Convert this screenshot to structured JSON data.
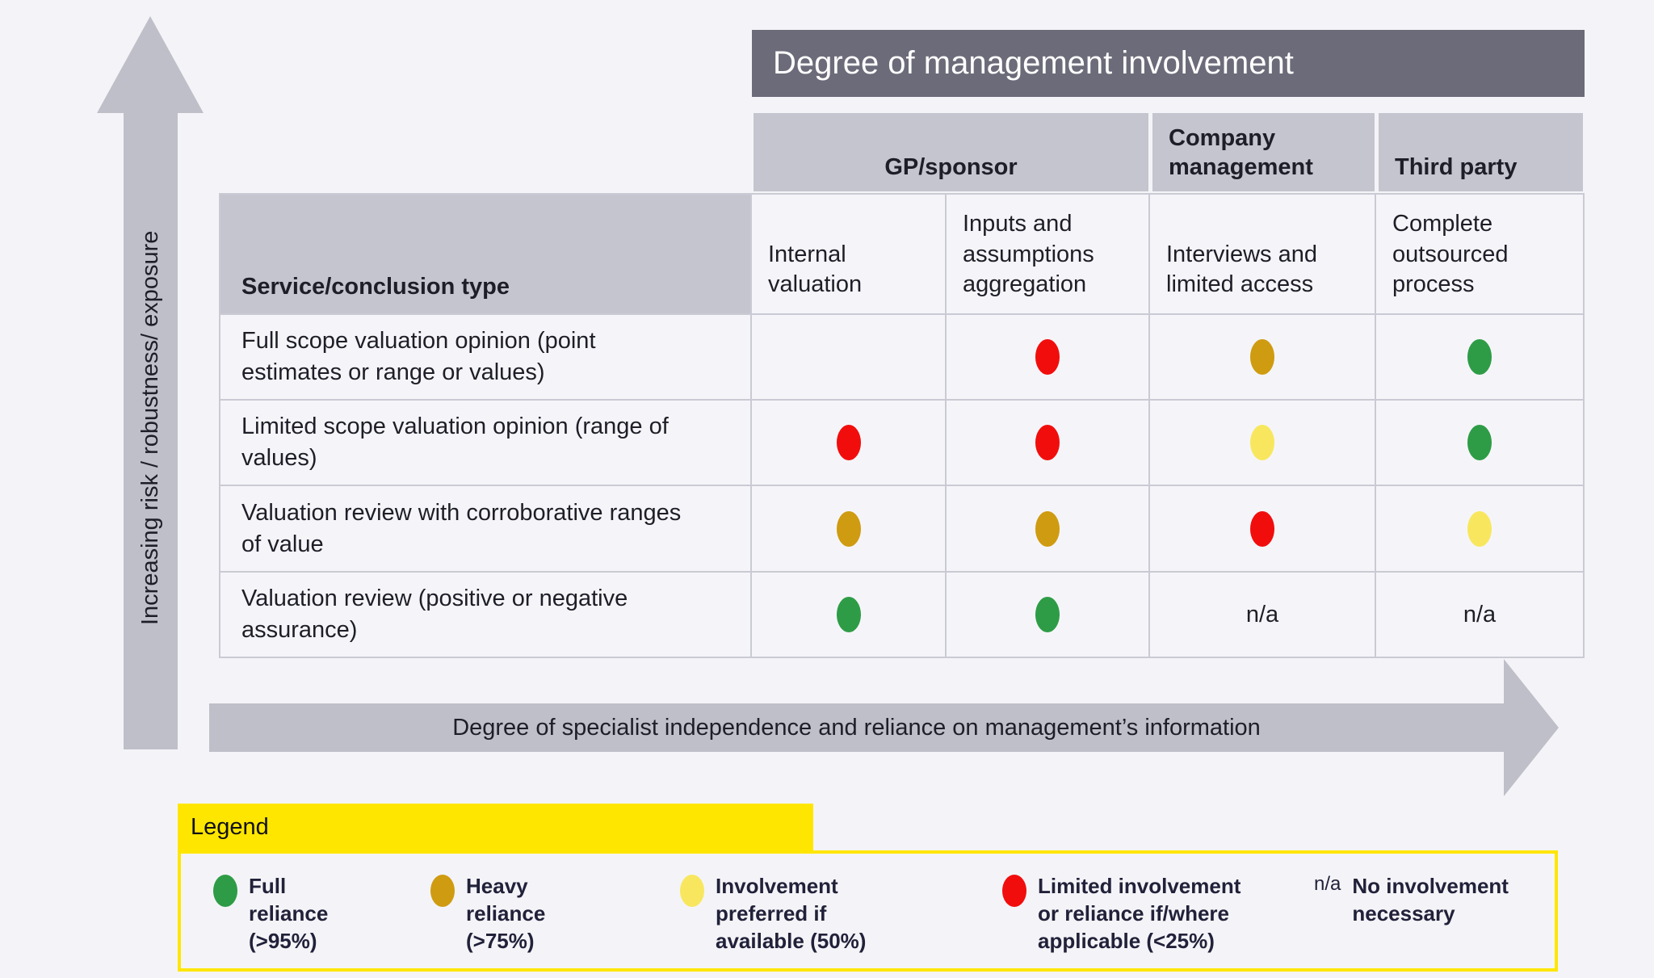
{
  "colors": {
    "pagebg": "#f4f4f8",
    "titlebar": "#6b6b79",
    "headgray": "#c5c5cf",
    "gridline": "#cacad4",
    "cellbg": "#f5f5f9",
    "arrow": "#bfbfc9",
    "green": "#2e9c46",
    "gold": "#cf9b10",
    "yellow": "#f8e75e",
    "red": "#f20d0d",
    "brand": "#ffe600",
    "textdark": "#1e1e28",
    "legendtext": "#21213a"
  },
  "left_axis": {
    "label": "Increasing risk / robustness/ exposure"
  },
  "bottom_axis": {
    "label": "Degree of specialist independence and reliance on management’s information"
  },
  "matrix": {
    "title": "Degree of management involvement",
    "row_header": "Service/conclusion type",
    "groups": [
      {
        "label": "GP/sponsor"
      },
      {
        "label": "Company management"
      },
      {
        "label": "Third party"
      }
    ],
    "columns": [
      {
        "label": "Internal valuation"
      },
      {
        "label": "Inputs and assumptions aggregation"
      },
      {
        "label": "Interviews and limited access"
      },
      {
        "label": "Complete outsourced process"
      }
    ],
    "rows": [
      {
        "label": "Full scope valuation opinion (point estimates or range or values)",
        "cells": [
          "none",
          "red",
          "gold",
          "green"
        ]
      },
      {
        "label": "Limited scope valuation opinion (range of values)",
        "cells": [
          "red",
          "red",
          "yellow",
          "green"
        ]
      },
      {
        "label": "Valuation review with corroborative ranges of value",
        "cells": [
          "gold",
          "gold",
          "red",
          "yellow"
        ]
      },
      {
        "label": "Valuation review (positive or negative assurance)",
        "cells": [
          "green",
          "green",
          "n/a",
          "n/a"
        ]
      }
    ],
    "na_text": "n/a"
  },
  "legend": {
    "title": "Legend",
    "items": [
      {
        "marker": "green",
        "label": "Full reliance (>95%)"
      },
      {
        "marker": "gold",
        "label": "Heavy reliance (>75%)"
      },
      {
        "marker": "yellow",
        "label": "Involvement preferred if available (50%)"
      },
      {
        "marker": "red",
        "label": "Limited involvement or reliance if/where applicable (<25%)"
      },
      {
        "marker": "n/a",
        "label": "No involvement necessary"
      }
    ]
  }
}
